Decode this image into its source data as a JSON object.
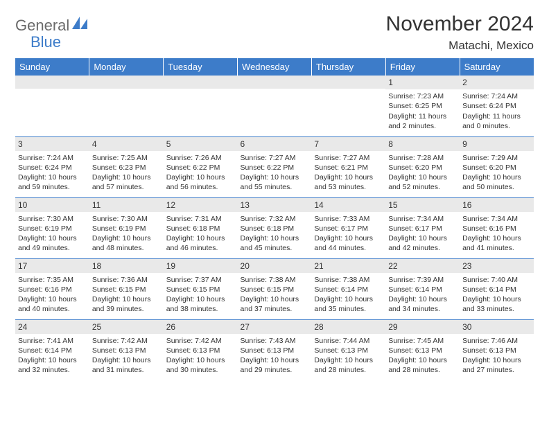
{
  "brand": {
    "name1": "General",
    "name2": "Blue"
  },
  "title": "November 2024",
  "location": "Matachi, Mexico",
  "accent_color": "#3d7cc9",
  "daynum_bg": "#e9e9e9",
  "text_color": "#333333",
  "days_of_week": [
    "Sunday",
    "Monday",
    "Tuesday",
    "Wednesday",
    "Thursday",
    "Friday",
    "Saturday"
  ],
  "weeks": [
    [
      {
        "n": "",
        "sr": "",
        "ss": "",
        "d1": "",
        "d2": ""
      },
      {
        "n": "",
        "sr": "",
        "ss": "",
        "d1": "",
        "d2": ""
      },
      {
        "n": "",
        "sr": "",
        "ss": "",
        "d1": "",
        "d2": ""
      },
      {
        "n": "",
        "sr": "",
        "ss": "",
        "d1": "",
        "d2": ""
      },
      {
        "n": "",
        "sr": "",
        "ss": "",
        "d1": "",
        "d2": ""
      },
      {
        "n": "1",
        "sr": "Sunrise: 7:23 AM",
        "ss": "Sunset: 6:25 PM",
        "d1": "Daylight: 11 hours",
        "d2": "and 2 minutes."
      },
      {
        "n": "2",
        "sr": "Sunrise: 7:24 AM",
        "ss": "Sunset: 6:24 PM",
        "d1": "Daylight: 11 hours",
        "d2": "and 0 minutes."
      }
    ],
    [
      {
        "n": "3",
        "sr": "Sunrise: 7:24 AM",
        "ss": "Sunset: 6:24 PM",
        "d1": "Daylight: 10 hours",
        "d2": "and 59 minutes."
      },
      {
        "n": "4",
        "sr": "Sunrise: 7:25 AM",
        "ss": "Sunset: 6:23 PM",
        "d1": "Daylight: 10 hours",
        "d2": "and 57 minutes."
      },
      {
        "n": "5",
        "sr": "Sunrise: 7:26 AM",
        "ss": "Sunset: 6:22 PM",
        "d1": "Daylight: 10 hours",
        "d2": "and 56 minutes."
      },
      {
        "n": "6",
        "sr": "Sunrise: 7:27 AM",
        "ss": "Sunset: 6:22 PM",
        "d1": "Daylight: 10 hours",
        "d2": "and 55 minutes."
      },
      {
        "n": "7",
        "sr": "Sunrise: 7:27 AM",
        "ss": "Sunset: 6:21 PM",
        "d1": "Daylight: 10 hours",
        "d2": "and 53 minutes."
      },
      {
        "n": "8",
        "sr": "Sunrise: 7:28 AM",
        "ss": "Sunset: 6:20 PM",
        "d1": "Daylight: 10 hours",
        "d2": "and 52 minutes."
      },
      {
        "n": "9",
        "sr": "Sunrise: 7:29 AM",
        "ss": "Sunset: 6:20 PM",
        "d1": "Daylight: 10 hours",
        "d2": "and 50 minutes."
      }
    ],
    [
      {
        "n": "10",
        "sr": "Sunrise: 7:30 AM",
        "ss": "Sunset: 6:19 PM",
        "d1": "Daylight: 10 hours",
        "d2": "and 49 minutes."
      },
      {
        "n": "11",
        "sr": "Sunrise: 7:30 AM",
        "ss": "Sunset: 6:19 PM",
        "d1": "Daylight: 10 hours",
        "d2": "and 48 minutes."
      },
      {
        "n": "12",
        "sr": "Sunrise: 7:31 AM",
        "ss": "Sunset: 6:18 PM",
        "d1": "Daylight: 10 hours",
        "d2": "and 46 minutes."
      },
      {
        "n": "13",
        "sr": "Sunrise: 7:32 AM",
        "ss": "Sunset: 6:18 PM",
        "d1": "Daylight: 10 hours",
        "d2": "and 45 minutes."
      },
      {
        "n": "14",
        "sr": "Sunrise: 7:33 AM",
        "ss": "Sunset: 6:17 PM",
        "d1": "Daylight: 10 hours",
        "d2": "and 44 minutes."
      },
      {
        "n": "15",
        "sr": "Sunrise: 7:34 AM",
        "ss": "Sunset: 6:17 PM",
        "d1": "Daylight: 10 hours",
        "d2": "and 42 minutes."
      },
      {
        "n": "16",
        "sr": "Sunrise: 7:34 AM",
        "ss": "Sunset: 6:16 PM",
        "d1": "Daylight: 10 hours",
        "d2": "and 41 minutes."
      }
    ],
    [
      {
        "n": "17",
        "sr": "Sunrise: 7:35 AM",
        "ss": "Sunset: 6:16 PM",
        "d1": "Daylight: 10 hours",
        "d2": "and 40 minutes."
      },
      {
        "n": "18",
        "sr": "Sunrise: 7:36 AM",
        "ss": "Sunset: 6:15 PM",
        "d1": "Daylight: 10 hours",
        "d2": "and 39 minutes."
      },
      {
        "n": "19",
        "sr": "Sunrise: 7:37 AM",
        "ss": "Sunset: 6:15 PM",
        "d1": "Daylight: 10 hours",
        "d2": "and 38 minutes."
      },
      {
        "n": "20",
        "sr": "Sunrise: 7:38 AM",
        "ss": "Sunset: 6:15 PM",
        "d1": "Daylight: 10 hours",
        "d2": "and 37 minutes."
      },
      {
        "n": "21",
        "sr": "Sunrise: 7:38 AM",
        "ss": "Sunset: 6:14 PM",
        "d1": "Daylight: 10 hours",
        "d2": "and 35 minutes."
      },
      {
        "n": "22",
        "sr": "Sunrise: 7:39 AM",
        "ss": "Sunset: 6:14 PM",
        "d1": "Daylight: 10 hours",
        "d2": "and 34 minutes."
      },
      {
        "n": "23",
        "sr": "Sunrise: 7:40 AM",
        "ss": "Sunset: 6:14 PM",
        "d1": "Daylight: 10 hours",
        "d2": "and 33 minutes."
      }
    ],
    [
      {
        "n": "24",
        "sr": "Sunrise: 7:41 AM",
        "ss": "Sunset: 6:14 PM",
        "d1": "Daylight: 10 hours",
        "d2": "and 32 minutes."
      },
      {
        "n": "25",
        "sr": "Sunrise: 7:42 AM",
        "ss": "Sunset: 6:13 PM",
        "d1": "Daylight: 10 hours",
        "d2": "and 31 minutes."
      },
      {
        "n": "26",
        "sr": "Sunrise: 7:42 AM",
        "ss": "Sunset: 6:13 PM",
        "d1": "Daylight: 10 hours",
        "d2": "and 30 minutes."
      },
      {
        "n": "27",
        "sr": "Sunrise: 7:43 AM",
        "ss": "Sunset: 6:13 PM",
        "d1": "Daylight: 10 hours",
        "d2": "and 29 minutes."
      },
      {
        "n": "28",
        "sr": "Sunrise: 7:44 AM",
        "ss": "Sunset: 6:13 PM",
        "d1": "Daylight: 10 hours",
        "d2": "and 28 minutes."
      },
      {
        "n": "29",
        "sr": "Sunrise: 7:45 AM",
        "ss": "Sunset: 6:13 PM",
        "d1": "Daylight: 10 hours",
        "d2": "and 28 minutes."
      },
      {
        "n": "30",
        "sr": "Sunrise: 7:46 AM",
        "ss": "Sunset: 6:13 PM",
        "d1": "Daylight: 10 hours",
        "d2": "and 27 minutes."
      }
    ]
  ]
}
